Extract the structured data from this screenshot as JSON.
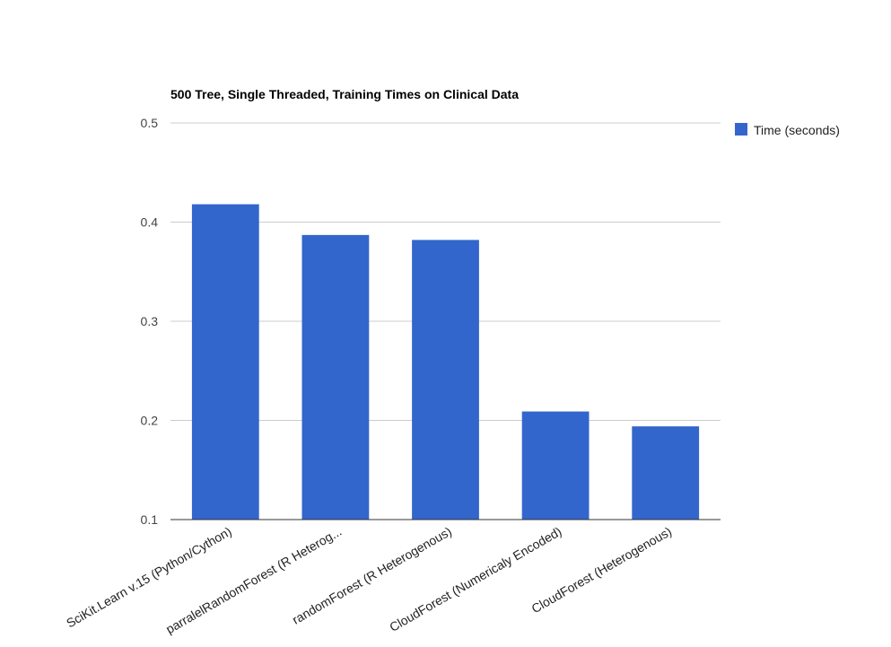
{
  "chart_data": {
    "type": "bar",
    "title": "500 Tree, Single Threaded, Training Times on Clinical Data",
    "xlabel": "",
    "ylabel": "",
    "categories": [
      "SciKit.Learn v.15 (Python/Cython)",
      "parralelRandomForest (R Heterog...",
      "randomForest (R Heterogenous)",
      "CloudForest (Numericaly Encoded)",
      "CloudForest (Heterogenous)"
    ],
    "series": [
      {
        "name": "Time (seconds)",
        "values": [
          0.418,
          0.387,
          0.382,
          0.209,
          0.194
        ]
      }
    ],
    "ylim": [
      0.1,
      0.5
    ],
    "yticks": [
      "0.1",
      "0.2",
      "0.3",
      "0.4",
      "0.5"
    ],
    "grid": true,
    "legend_position": "right",
    "colors": {
      "bar": "#3366cc",
      "grid": "#cccccc",
      "axis": "#333333",
      "text": "#222222",
      "tick_text": "#444444"
    }
  }
}
